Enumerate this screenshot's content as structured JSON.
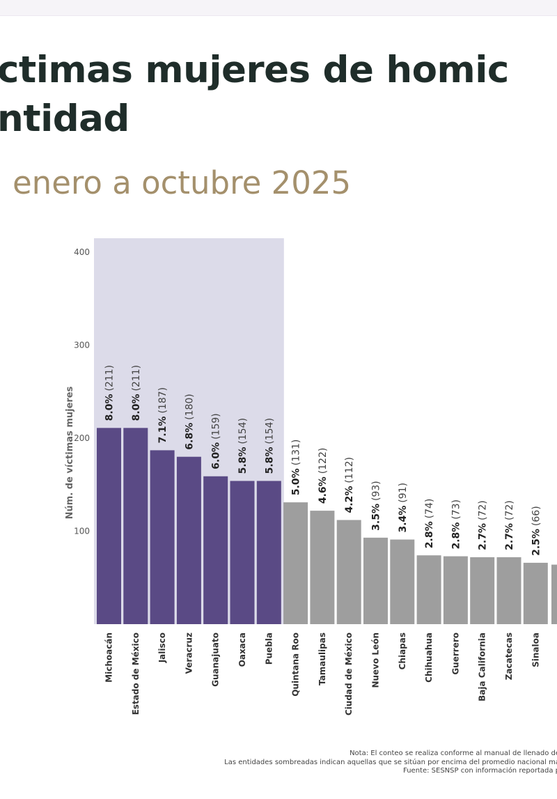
{
  "header": {
    "title_line1": "ctimas mujeres de homic",
    "title_line2": "ntidad",
    "subtitle": "enero a octubre 2025"
  },
  "colors": {
    "highlight_bar": "#5a4a85",
    "regular_bar": "#9e9e9e",
    "highlight_band": "#dcdbe9",
    "title": "#1f2d2a",
    "subtitle": "#a4906c"
  },
  "chart_data": {
    "type": "bar",
    "ylabel": "Núm. de víctimas mujeres",
    "ylim": [
      0,
      415
    ],
    "yticks": [
      "100",
      "200",
      "300",
      "400"
    ],
    "grid": false,
    "categories": [
      "Michoacán",
      "Estado de México",
      "Jalisco",
      "Veracruz",
      "Guanajuato",
      "Oaxaca",
      "Puebla",
      "Quintana Roo",
      "Tamaulipas",
      "Ciudad de México",
      "Nuevo León",
      "Chiapas",
      "Chihuahua",
      "Guerrero",
      "Baja California",
      "Zacatecas",
      "Sinaloa"
    ],
    "values": [
      211,
      211,
      187,
      180,
      159,
      154,
      154,
      131,
      122,
      112,
      93,
      91,
      74,
      73,
      72,
      72,
      66
    ],
    "pct_labels": [
      "8.0%",
      "8.0%",
      "7.1%",
      "6.8%",
      "6.0%",
      "5.8%",
      "5.8%",
      "5.0%",
      "4.6%",
      "4.2%",
      "3.5%",
      "3.4%",
      "2.8%",
      "2.8%",
      "2.7%",
      "2.7%",
      "2.5%"
    ],
    "count_labels": [
      "(211)",
      "(211)",
      "(187)",
      "(180)",
      "(159)",
      "(154)",
      "(154)",
      "(131)",
      "(122)",
      "(112)",
      "(93)",
      "(91)",
      "(74)",
      "(73)",
      "(72)",
      "(72)",
      "(66)"
    ],
    "highlighted_count": 7
  },
  "notes": {
    "line1": "Nota: El conteo se realiza conforme al manual de llenado de",
    "line2": "Las entidades sombreadas indican aquellas que se sitúan por encima del promedio nacional má",
    "line3": "Fuente: SESNSP con información reportada p"
  }
}
